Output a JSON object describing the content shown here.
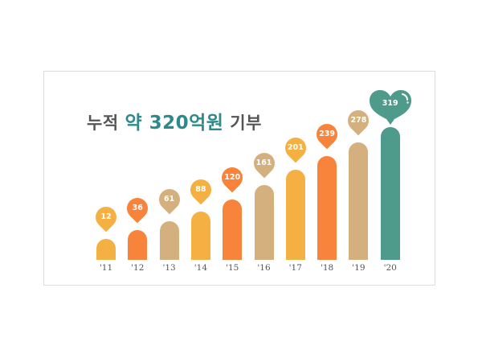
{
  "title": {
    "prefix": "누적 ",
    "highlight": "약 320억원",
    "suffix": " 기부"
  },
  "colors": {
    "yellow": "#f5b043",
    "orange": "#f8833a",
    "tan": "#d4b07f",
    "teal": "#4e9a8b",
    "title_gray": "#555555",
    "title_teal": "#2e8a8a"
  },
  "chart_data": {
    "type": "bar",
    "title": "누적 약 320억원 기부",
    "xlabel": "",
    "ylabel": "",
    "categories": [
      "'11",
      "'12",
      "'13",
      "'14",
      "'15",
      "'16",
      "'17",
      "'18",
      "'19",
      "'20"
    ],
    "values": [
      12,
      36,
      61,
      88,
      120,
      161,
      201,
      239,
      278,
      319
    ],
    "bar_colors": [
      "#f5b043",
      "#f8833a",
      "#d4b07f",
      "#f5b043",
      "#f8833a",
      "#d4b07f",
      "#f5b043",
      "#f8833a",
      "#d4b07f",
      "#4e9a8b"
    ],
    "grid": false,
    "legend": "none",
    "annotations": "value shown in pin marker above each bar; final value in heart marker"
  },
  "bars": [
    {
      "label": "'11",
      "value": "12"
    },
    {
      "label": "'12",
      "value": "36"
    },
    {
      "label": "'13",
      "value": "61"
    },
    {
      "label": "'14",
      "value": "88"
    },
    {
      "label": "'15",
      "value": "120"
    },
    {
      "label": "'16",
      "value": "161"
    },
    {
      "label": "'17",
      "value": "201"
    },
    {
      "label": "'18",
      "value": "239"
    },
    {
      "label": "'19",
      "value": "278"
    },
    {
      "label": "'20",
      "value": "319"
    }
  ]
}
